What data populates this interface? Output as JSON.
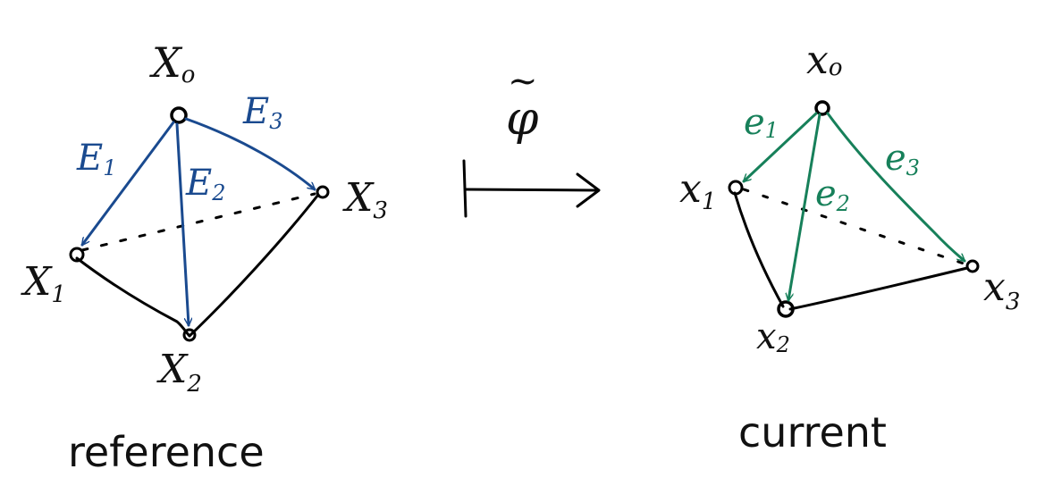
{
  "colors": {
    "ink": "#111111",
    "reference_vectors": "#1a4a8f",
    "current_vectors": "#17805a"
  },
  "reference": {
    "caption": "reference",
    "vertices": [
      "X",
      "X",
      "X",
      "X"
    ],
    "subscripts": [
      "o",
      "1",
      "2",
      "3"
    ],
    "edge_vectors": [
      "E",
      "E",
      "E"
    ],
    "edge_subscripts": [
      "1",
      "2",
      "3"
    ]
  },
  "map": {
    "symbol": "φ",
    "accent": "~"
  },
  "current": {
    "caption": "current",
    "vertices": [
      "x",
      "x",
      "x",
      "x"
    ],
    "subscripts": [
      "o",
      "1",
      "2",
      "3"
    ],
    "edge_vectors": [
      "e",
      "e",
      "e"
    ],
    "edge_subscripts": [
      "1",
      "2",
      "3"
    ]
  }
}
